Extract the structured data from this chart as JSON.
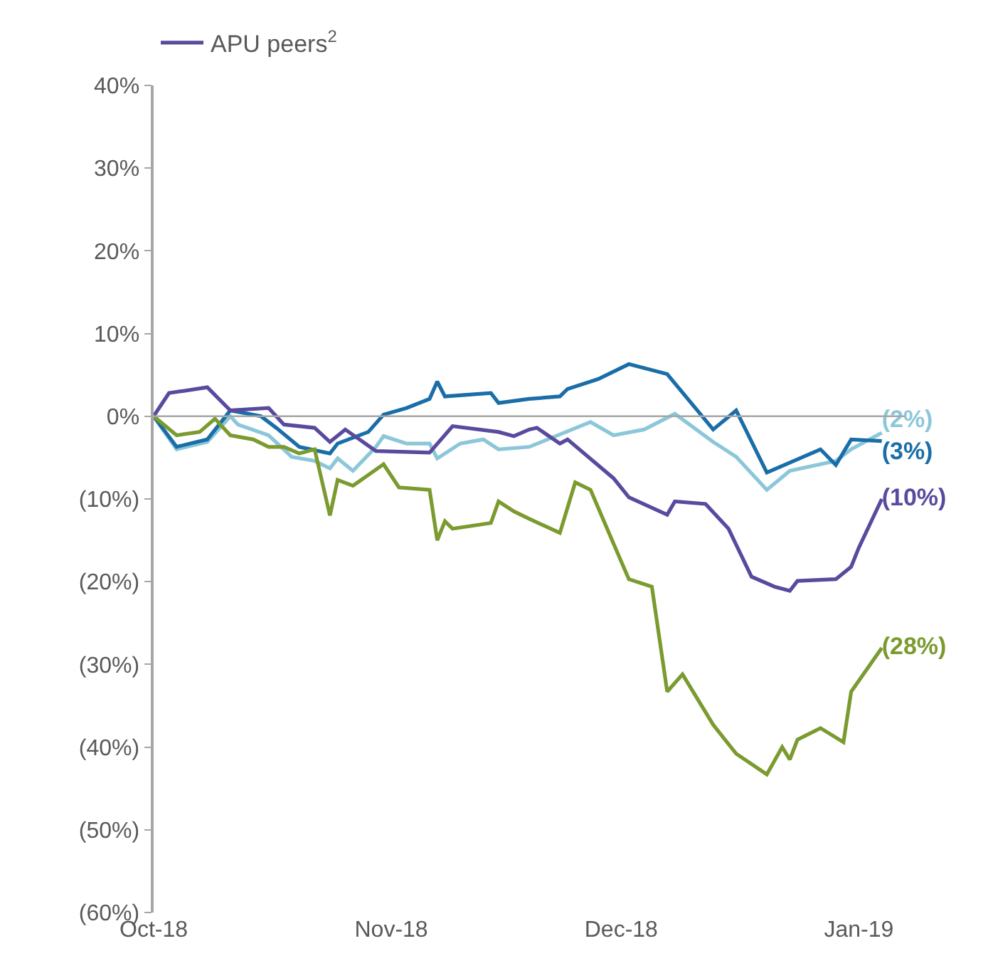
{
  "chart_data": {
    "type": "line",
    "legend": "top left",
    "grid": false,
    "marker": "none",
    "line_style": "solid",
    "xlim": [
      "2018-10-01",
      "2019-01-07"
    ],
    "xticks": [
      {
        "value": "2018-10-01",
        "label": "Oct-18"
      },
      {
        "value": "2018-11-01",
        "label": "Nov-18"
      },
      {
        "value": "2018-12-01",
        "label": "Dec-18"
      },
      {
        "value": "2019-01-01",
        "label": "Jan-19"
      }
    ],
    "ylim": [
      -60,
      40
    ],
    "yticks": [
      {
        "value": 40,
        "label": "40%"
      },
      {
        "value": 30,
        "label": "30%"
      },
      {
        "value": 20,
        "label": "20%"
      },
      {
        "value": 10,
        "label": "10%"
      },
      {
        "value": 0,
        "label": "0%"
      },
      {
        "value": -10,
        "label": "(10%)"
      },
      {
        "value": -20,
        "label": "(20%)"
      },
      {
        "value": -30,
        "label": "(30%)"
      },
      {
        "value": -40,
        "label": "(40%)"
      },
      {
        "value": -50,
        "label": "(50%)"
      },
      {
        "value": -60,
        "label": "(60%)"
      }
    ],
    "ref_lines": [
      {
        "axis": "y",
        "value": 0,
        "color": "#a6a6a6"
      }
    ],
    "series": [
      {
        "color": "#8cc7d9",
        "x": [
          "2018-10-01",
          "2018-10-04",
          "2018-10-08",
          "2018-10-11",
          "2018-10-12",
          "2018-10-16",
          "2018-10-19",
          "2018-10-22",
          "2018-10-24",
          "2018-10-25",
          "2018-10-27",
          "2018-10-30",
          "2018-10-31",
          "2018-11-03",
          "2018-11-06",
          "2018-11-07",
          "2018-11-10",
          "2018-11-13",
          "2018-11-15",
          "2018-11-19",
          "2018-11-27",
          "2018-11-30",
          "2018-12-04",
          "2018-12-08",
          "2018-12-13",
          "2018-12-16",
          "2018-12-20",
          "2018-12-23",
          "2018-12-29",
          "2018-12-31",
          "2019-01-04"
        ],
        "values": [
          0,
          -4,
          -3.1,
          0,
          -1,
          -2.3,
          -4.9,
          -5.4,
          -6.3,
          -5.1,
          -6.6,
          -3.7,
          -2.4,
          -3.3,
          -3.3,
          -5.1,
          -3.3,
          -2.8,
          -4,
          -3.7,
          -0.7,
          -2.3,
          -1.6,
          0.3,
          -3.1,
          -4.9,
          -8.9,
          -6.6,
          -5.4,
          -4,
          -2
        ],
        "value_labels": [
          null,
          null,
          null,
          null,
          null,
          null,
          null,
          null,
          null,
          null,
          null,
          null,
          null,
          null,
          null,
          null,
          null,
          null,
          null,
          null,
          null,
          null,
          null,
          null,
          null,
          null,
          null,
          null,
          null,
          null,
          "(2%)"
        ]
      },
      {
        "color": "#1a6ea8",
        "x": [
          "2018-10-01",
          "2018-10-04",
          "2018-10-08",
          "2018-10-11",
          "2018-10-15",
          "2018-10-17",
          "2018-10-20",
          "2018-10-24",
          "2018-10-25",
          "2018-10-29",
          "2018-10-31",
          "2018-11-03",
          "2018-11-06",
          "2018-11-07",
          "2018-11-08",
          "2018-11-14",
          "2018-11-15",
          "2018-11-19",
          "2018-11-23",
          "2018-11-24",
          "2018-11-28",
          "2018-12-02",
          "2018-12-07",
          "2018-12-13",
          "2018-12-16",
          "2018-12-20",
          "2018-12-27",
          "2018-12-29",
          "2018-12-31",
          "2019-01-04"
        ],
        "values": [
          0,
          -3.7,
          -2.8,
          0.7,
          0,
          -1.4,
          -3.7,
          -4.5,
          -3.3,
          -1.9,
          0.2,
          1,
          2.1,
          4.2,
          2.4,
          2.8,
          1.6,
          2.1,
          2.4,
          3.3,
          4.5,
          6.3,
          5.1,
          -1.6,
          0.7,
          -6.8,
          -4,
          -5.9,
          -2.8,
          -3
        ],
        "value_labels": [
          null,
          null,
          null,
          null,
          null,
          null,
          null,
          null,
          null,
          null,
          null,
          null,
          null,
          null,
          null,
          null,
          null,
          null,
          null,
          null,
          null,
          null,
          null,
          null,
          null,
          null,
          null,
          null,
          null,
          "(3%)"
        ]
      },
      {
        "name": "APU peers$^{2}$",
        "color": "#5a4a9e",
        "x": [
          "2018-10-01",
          "2018-10-03",
          "2018-10-08",
          "2018-10-11",
          "2018-10-16",
          "2018-10-18",
          "2018-10-22",
          "2018-10-24",
          "2018-10-26",
          "2018-10-30",
          "2018-11-06",
          "2018-11-09",
          "2018-11-15",
          "2018-11-17",
          "2018-11-19",
          "2018-11-20",
          "2018-11-23",
          "2018-11-24",
          "2018-11-30",
          "2018-12-02",
          "2018-12-07",
          "2018-12-08",
          "2018-12-12",
          "2018-12-15",
          "2018-12-18",
          "2018-12-21",
          "2018-12-23",
          "2018-12-24",
          "2018-12-29",
          "2018-12-31",
          "2019-01-01",
          "2019-01-04"
        ],
        "values": [
          0,
          2.8,
          3.5,
          0.7,
          1,
          -1,
          -1.4,
          -3.1,
          -1.6,
          -4.2,
          -4.4,
          -1.2,
          -1.9,
          -2.4,
          -1.6,
          -1.4,
          -3.3,
          -2.8,
          -7.5,
          -9.8,
          -11.9,
          -10.3,
          -10.6,
          -13.6,
          -19.4,
          -20.6,
          -21.1,
          -19.9,
          -19.7,
          -18.2,
          -15.9,
          -10
        ],
        "value_labels": [
          null,
          null,
          null,
          null,
          null,
          null,
          null,
          null,
          null,
          null,
          null,
          null,
          null,
          null,
          null,
          null,
          null,
          null,
          null,
          null,
          null,
          null,
          null,
          null,
          null,
          null,
          null,
          null,
          null,
          null,
          null,
          "(10%)"
        ]
      },
      {
        "color": "#7b9a2f",
        "x": [
          "2018-10-01",
          "2018-10-04",
          "2018-10-07",
          "2018-10-09",
          "2018-10-11",
          "2018-10-14",
          "2018-10-16",
          "2018-10-18",
          "2018-10-20",
          "2018-10-22",
          "2018-10-24",
          "2018-10-25",
          "2018-10-27",
          "2018-10-31",
          "2018-11-02",
          "2018-11-06",
          "2018-11-07",
          "2018-11-08",
          "2018-11-09",
          "2018-11-14",
          "2018-11-15",
          "2018-11-17",
          "2018-11-19",
          "2018-11-23",
          "2018-11-25",
          "2018-11-27",
          "2018-11-30",
          "2018-12-02",
          "2018-12-05",
          "2018-12-07",
          "2018-12-09",
          "2018-12-13",
          "2018-12-16",
          "2018-12-20",
          "2018-12-22",
          "2018-12-23",
          "2018-12-24",
          "2018-12-27",
          "2018-12-30",
          "2018-12-31",
          "2019-01-04"
        ],
        "values": [
          0,
          -2.3,
          -1.9,
          -0.3,
          -2.3,
          -2.8,
          -3.7,
          -3.7,
          -4.5,
          -4,
          -12,
          -7.7,
          -8.4,
          -5.8,
          -8.6,
          -8.9,
          -15,
          -12.7,
          -13.6,
          -12.9,
          -10.3,
          -11.5,
          -12.4,
          -14.1,
          -8,
          -8.9,
          -15.4,
          -19.7,
          -20.6,
          -33.3,
          -31.2,
          -37.3,
          -40.8,
          -43.3,
          -40,
          -41.5,
          -39.1,
          -37.7,
          -39.4,
          -33.3,
          -28
        ],
        "value_labels": [
          null,
          null,
          null,
          null,
          null,
          null,
          null,
          null,
          null,
          null,
          null,
          null,
          null,
          null,
          null,
          null,
          null,
          null,
          null,
          null,
          null,
          null,
          null,
          null,
          null,
          null,
          null,
          null,
          null,
          null,
          null,
          null,
          null,
          null,
          null,
          null,
          null,
          null,
          null,
          null,
          "(28%)"
        ]
      }
    ]
  }
}
